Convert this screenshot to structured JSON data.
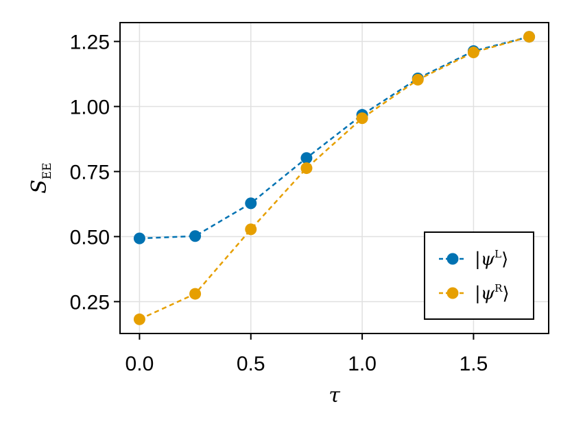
{
  "chart_data": {
    "type": "line",
    "xlabel": "τ",
    "ylabel": {
      "main": "S",
      "sub": "EE"
    },
    "xlim": [
      -0.0875,
      1.8375
    ],
    "ylim": [
      0.1275,
      1.3225
    ],
    "xticks": [
      0.0,
      0.5,
      1.0,
      1.5
    ],
    "xtick_labels": [
      "0.0",
      "0.5",
      "1.0",
      "1.5"
    ],
    "yticks": [
      0.25,
      0.5,
      0.75,
      1.0,
      1.25
    ],
    "ytick_labels": [
      "0.25",
      "0.50",
      "0.75",
      "1.00",
      "1.25"
    ],
    "grid": true,
    "legend_position": "bottom-right",
    "x": [
      0.0,
      0.25,
      0.5,
      0.75,
      1.0,
      1.25,
      1.5,
      1.75
    ],
    "series": [
      {
        "name": "|ψ^L⟩",
        "label_parts": {
          "left": "|ψ",
          "sup": "L",
          "right": "⟩"
        },
        "color": "#0072b2",
        "values": [
          0.493,
          0.502,
          0.628,
          0.802,
          0.968,
          1.108,
          1.213,
          1.268
        ]
      },
      {
        "name": "|ψ^R⟩",
        "label_parts": {
          "left": "|ψ",
          "sup": "R",
          "right": "⟩"
        },
        "color": "#e69f00",
        "values": [
          0.182,
          0.28,
          0.528,
          0.763,
          0.955,
          1.103,
          1.208,
          1.268
        ]
      }
    ]
  }
}
